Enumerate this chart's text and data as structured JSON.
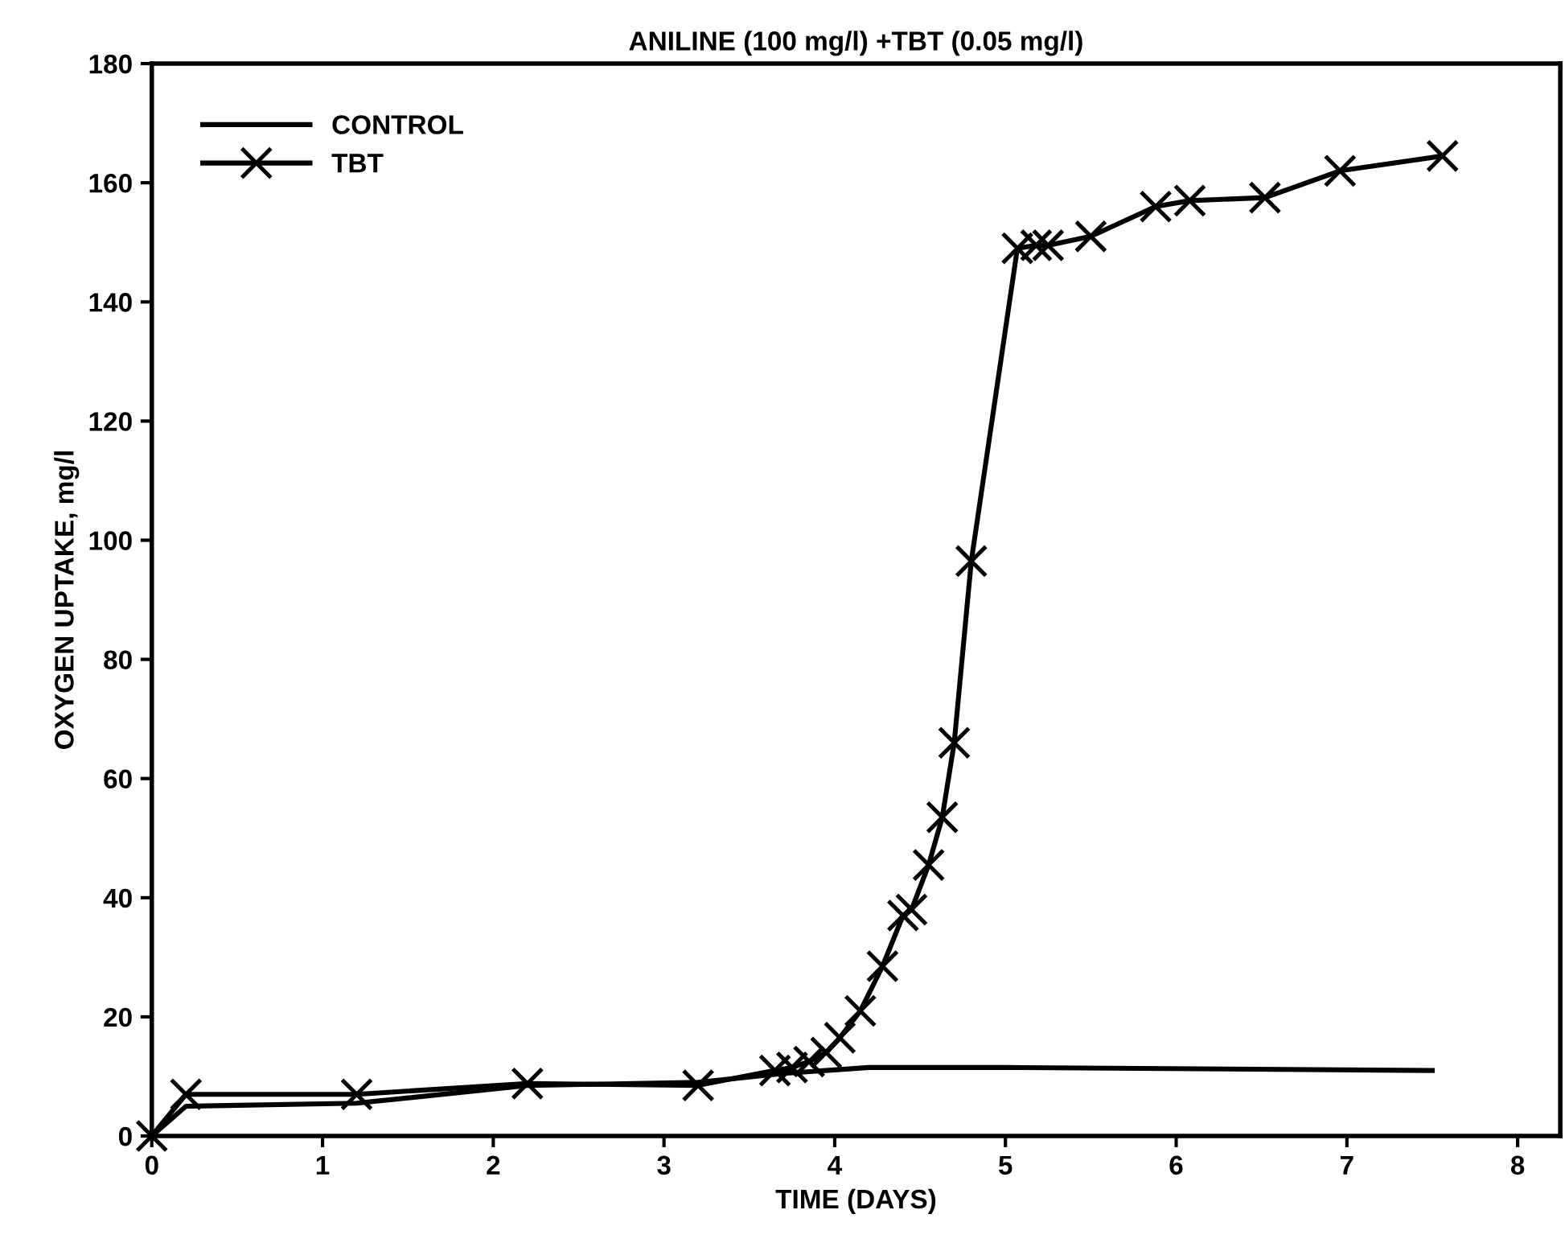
{
  "chart_data": {
    "type": "line",
    "title": "ANILINE (100 mg/l) +TBT (0.05 mg/l)",
    "xlabel": "TIME (DAYS)",
    "ylabel": "OXYGEN UPTAKE, mg/l",
    "xlim": [
      0,
      8.25
    ],
    "xticks": [
      0,
      1,
      2,
      3,
      4,
      5,
      6,
      7,
      8
    ],
    "ylim": [
      0,
      180
    ],
    "yticks": [
      0,
      20,
      40,
      60,
      80,
      100,
      120,
      140,
      160,
      180
    ],
    "grid": false,
    "legend": "top left",
    "series": [
      {
        "name": "CONTROL",
        "color": "#000000",
        "marker": "none",
        "x": [
          0,
          0.2,
          1.2,
          2.2,
          3.2,
          3.7,
          4.2,
          5,
          7.5
        ],
        "values": [
          0,
          5,
          5.5,
          8.5,
          9,
          10.5,
          11.5,
          11.5,
          11
        ]
      },
      {
        "name": "TBT",
        "color": "#000000",
        "marker": "cross",
        "x": [
          0,
          0.2,
          1.2,
          2.2,
          3.2,
          3.65,
          3.75,
          3.85,
          3.95,
          4.03,
          4.15,
          4.28,
          4.4,
          4.45,
          4.55,
          4.63,
          4.7,
          4.8,
          5.07,
          5.18,
          5.25,
          5.5,
          5.88,
          6.08,
          6.52,
          6.96,
          7.56
        ],
        "values": [
          0,
          7,
          7,
          8.8,
          8.5,
          11,
          11.5,
          12.5,
          14,
          16.5,
          21,
          28.5,
          37,
          38,
          45.5,
          53.5,
          66,
          96.5,
          149,
          149.5,
          149.5,
          151,
          156,
          157,
          157.5,
          162,
          164.5
        ]
      }
    ]
  }
}
